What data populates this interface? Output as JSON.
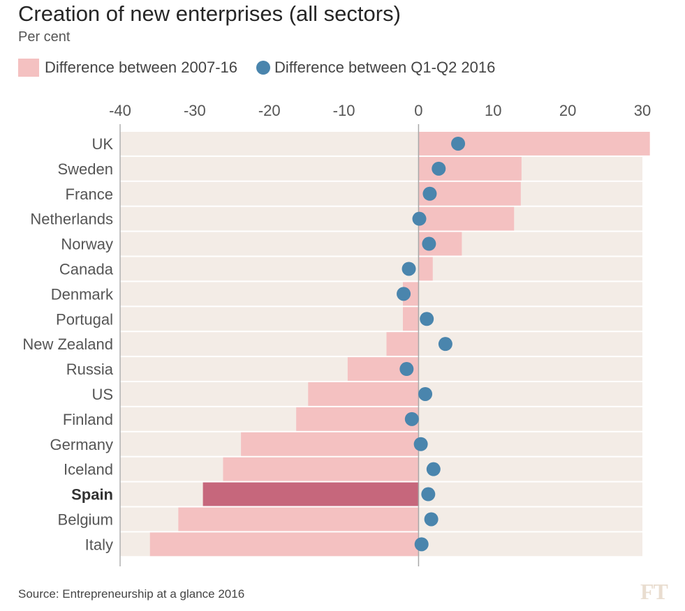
{
  "chart_data": {
    "type": "bar",
    "title": "Creation of new enterprises (all sectors)",
    "subtitle": "Per cent",
    "legend": {
      "bar_label": "Difference between 2007-16",
      "dot_label": "Difference between Q1-Q2 2016"
    },
    "xlim": [
      -40,
      30
    ],
    "xticks": [
      -40,
      -30,
      -20,
      -10,
      0,
      10,
      20,
      30
    ],
    "xtick_labels": [
      "-40",
      "-30",
      "-20",
      "-10",
      "0",
      "10",
      "20",
      "30"
    ],
    "categories": [
      "UK",
      "Sweden",
      "France",
      "Netherlands",
      "Norway",
      "Canada",
      "Denmark",
      "Portugal",
      "New Zealand",
      "Russia",
      "US",
      "Finland",
      "Germany",
      "Iceland",
      "Spain",
      "Belgium",
      "Italy"
    ],
    "highlight": "Spain",
    "series": [
      {
        "name": "Difference between 2007-16",
        "kind": "bar",
        "values": [
          31,
          13.8,
          13.7,
          12.8,
          5.8,
          1.9,
          -2.1,
          -2.1,
          -4.3,
          -9.5,
          -14.8,
          -16.4,
          -23.8,
          -26.2,
          -28.9,
          -32.2,
          -36
        ]
      },
      {
        "name": "Difference between Q1-Q2 2016",
        "kind": "dot",
        "values": [
          5.3,
          2.7,
          1.5,
          0.1,
          1.4,
          -1.3,
          -2.0,
          1.1,
          3.6,
          -1.6,
          0.9,
          -0.9,
          0.3,
          2.0,
          1.3,
          1.7,
          0.4
        ]
      }
    ],
    "colors": {
      "bar": "#f4c1c1",
      "bar_highlight": "#c6677c",
      "dot": "#4a85ad",
      "row_bg": "#f3ece6",
      "zero_line": "#a8a8a8",
      "axis_line": "#b0b0b0"
    }
  },
  "source": "Source: Entrepreneurship at a glance 2016",
  "brand": "FT"
}
